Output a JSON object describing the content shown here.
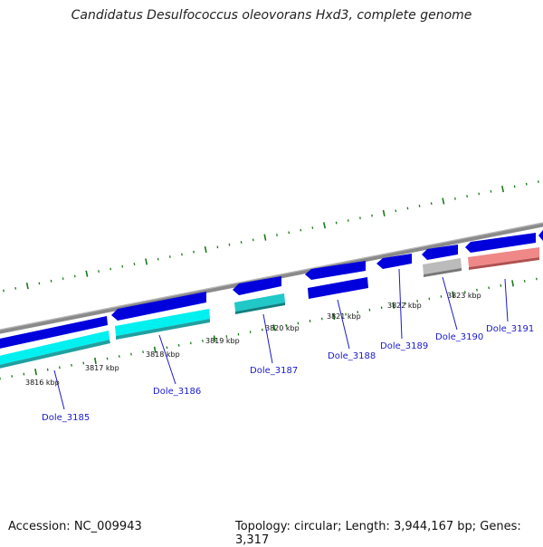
{
  "title": "Candidatus Desulfococcus oleovorans Hxd3, complete genome",
  "footer": {
    "accession": "Accession: NC_009943",
    "summary": "Topology: circular; Length: 3,944,167 bp; Genes: 3,317"
  },
  "colors": {
    "cds_forward": "#0000dd",
    "cds_reverse_cyan": "#00f0f0",
    "cds_reverse_teal": "#20c0c0",
    "gene_grey": "#b8b8b8",
    "gene_pink": "#f08080",
    "backbone": "#888888",
    "ticks": "#1a7a1a",
    "label_line": "#1a1acc"
  },
  "ticks": [
    "3816 kbp",
    "3817 kbp",
    "3818 kbp",
    "3819 kbp",
    "3820 kbp",
    "3821 kbp",
    "3822 kbp",
    "3823 kbp"
  ],
  "genes": [
    "Dole_3185",
    "Dole_3186",
    "Dole_3187",
    "Dole_3188",
    "Dole_3189",
    "Dole_3190",
    "Dole_3191"
  ]
}
